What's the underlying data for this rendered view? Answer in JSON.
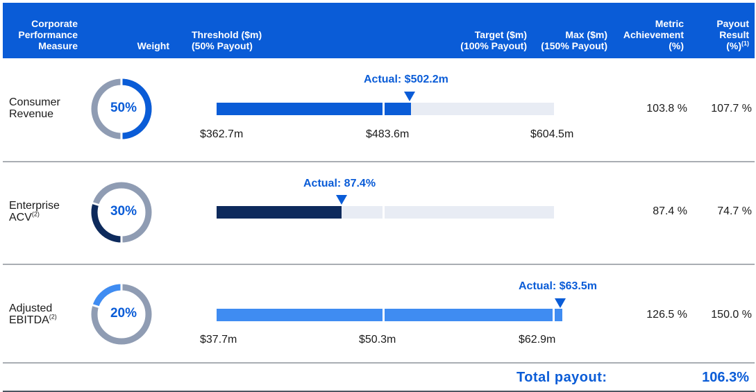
{
  "header": {
    "measure": [
      "Corporate",
      "Performance",
      "Measure"
    ],
    "weight": "Weight",
    "threshold": [
      "Threshold ($m)",
      "(50% Payout)"
    ],
    "target": [
      "Target ($m)",
      "(100% Payout)"
    ],
    "max": [
      "Max ($m)",
      "(150% Payout)"
    ],
    "achievement": [
      "Metric",
      "Achievement",
      "(%)"
    ],
    "payout": [
      "Payout",
      "Result",
      "(%)"
    ],
    "payout_footnote": "(1)"
  },
  "rows": [
    {
      "measure": [
        "Consumer",
        "Revenue"
      ],
      "footnote": "",
      "weight_label": "50%",
      "achievement": "103.8 %",
      "payout": "107.7 %",
      "actual_label": "Actual: $502.2m",
      "ticks": [
        "$362.7m",
        "$483.6m",
        "$604.5m"
      ]
    },
    {
      "measure": [
        "Enterprise",
        "ACV"
      ],
      "footnote": "(2)",
      "weight_label": "30%",
      "achievement": "87.4 %",
      "payout": "74.7 %",
      "actual_label": "Actual: 87.4%",
      "ticks": []
    },
    {
      "measure": [
        "Adjusted",
        "EBITDA"
      ],
      "footnote": "(2)",
      "weight_label": "20%",
      "achievement": "126.5 %",
      "payout": "150.0 %",
      "actual_label": "Actual: $63.5m",
      "ticks": [
        "$37.7m",
        "$50.3m",
        "$62.9m"
      ]
    }
  ],
  "total": {
    "label": "Total payout:",
    "value": "106.3%"
  },
  "chart_data": [
    {
      "type": "bar",
      "orientation": "horizontal",
      "series_name": "Consumer Revenue",
      "threshold": 362.7,
      "target": 483.6,
      "max": 604.5,
      "actual": 502.2,
      "weight": 50,
      "color": "#0a5cd7"
    },
    {
      "type": "bar",
      "orientation": "horizontal",
      "series_name": "Enterprise ACV",
      "threshold_pct": 50,
      "target_pct": 100,
      "max_pct": 150,
      "actual_achievement_pct": 87.4,
      "weight": 30,
      "color": "#0d2a5c"
    },
    {
      "type": "bar",
      "orientation": "horizontal",
      "series_name": "Adjusted EBITDA",
      "threshold": 37.7,
      "target": 50.3,
      "max": 62.9,
      "actual": 63.5,
      "weight": 20,
      "color": "#3f8cf2"
    }
  ],
  "colors": {
    "header_bg": "#0a5cd7",
    "accent": "#0a5cd7",
    "dark_navy": "#0d2a5c",
    "light_blue": "#3f8cf2",
    "track": "#e8ecf4",
    "donut_gray": "#8f9cb3"
  }
}
